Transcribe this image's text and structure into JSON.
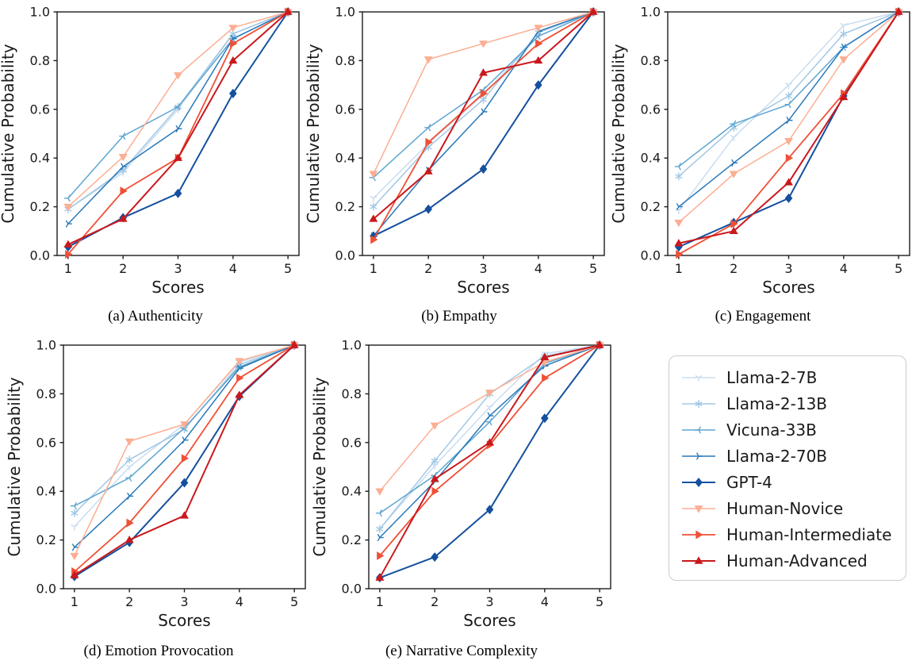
{
  "figure": {
    "background": "#ffffff",
    "spine_color": "#1c1c1c",
    "tick_color": "#1c1c1c"
  },
  "axes": {
    "xlabel": "Scores",
    "ylabel": "Cumulative Probability",
    "xticks": [
      "1",
      "2",
      "3",
      "4",
      "5"
    ],
    "yticks": [
      "0.0",
      "0.2",
      "0.4",
      "0.6",
      "0.8",
      "1.0"
    ],
    "xlim": [
      0.8,
      5.2
    ],
    "ylim": [
      0.0,
      1.0
    ],
    "grid": false
  },
  "legend": {
    "position": "right-middle",
    "items": [
      {
        "label": "Llama-2-7B",
        "color": "#c9ddf0",
        "marker": "tri-down-open",
        "line_width": 1.5
      },
      {
        "label": "Llama-2-13B",
        "color": "#a2c8e4",
        "marker": "asterisk",
        "line_width": 1.5
      },
      {
        "label": "Vicuna-33B",
        "color": "#5da5d1",
        "marker": "tri-left-open",
        "line_width": 1.5
      },
      {
        "label": "Llama-2-70B",
        "color": "#2979b9",
        "marker": "tri-right-open",
        "line_width": 1.5
      },
      {
        "label": "GPT-4",
        "color": "#15509e",
        "marker": "diamond-filled",
        "line_width": 2.0
      },
      {
        "label": "Human-Novice",
        "color": "#fcae92",
        "marker": "tri-down-filled",
        "line_width": 1.5
      },
      {
        "label": "Human-Intermediate",
        "color": "#ef5036",
        "marker": "tri-right-filled",
        "line_width": 1.8
      },
      {
        "label": "Human-Advanced",
        "color": "#ca181c",
        "marker": "tri-up-filled",
        "line_width": 2.0
      }
    ]
  },
  "chart_data": [
    {
      "type": "line",
      "id": "a",
      "caption": "(a) Authenticity",
      "xlabel": "Scores",
      "ylabel": "Cumulative Probability",
      "x": [
        1,
        2,
        3,
        4,
        5
      ],
      "series": [
        {
          "name": "Llama-2-7B",
          "values": [
            0.19,
            0.34,
            0.6,
            0.91,
            1.0
          ]
        },
        {
          "name": "Llama-2-13B",
          "values": [
            0.19,
            0.35,
            0.61,
            0.91,
            1.0
          ]
        },
        {
          "name": "Vicuna-33B",
          "values": [
            0.235,
            0.49,
            0.61,
            0.89,
            1.0
          ]
        },
        {
          "name": "Llama-2-70B",
          "values": [
            0.13,
            0.365,
            0.52,
            0.89,
            1.0
          ]
        },
        {
          "name": "GPT-4",
          "values": [
            0.035,
            0.155,
            0.255,
            0.665,
            1.0
          ]
        },
        {
          "name": "Human-Novice",
          "values": [
            0.2,
            0.405,
            0.74,
            0.935,
            1.0
          ]
        },
        {
          "name": "Human-Intermediate",
          "values": [
            0.005,
            0.265,
            0.4,
            0.87,
            1.0
          ]
        },
        {
          "name": "Human-Advanced",
          "values": [
            0.045,
            0.15,
            0.4,
            0.8,
            1.0
          ]
        }
      ]
    },
    {
      "type": "line",
      "id": "b",
      "caption": "(b) Empathy",
      "xlabel": "Scores",
      "ylabel": "Cumulative Probability",
      "x": [
        1,
        2,
        3,
        4,
        5
      ],
      "series": [
        {
          "name": "Llama-2-7B",
          "values": [
            0.235,
            0.46,
            0.66,
            0.9,
            1.0
          ]
        },
        {
          "name": "Llama-2-13B",
          "values": [
            0.2,
            0.445,
            0.64,
            0.915,
            1.0
          ]
        },
        {
          "name": "Vicuna-33B",
          "values": [
            0.32,
            0.525,
            0.68,
            0.9,
            1.0
          ]
        },
        {
          "name": "Llama-2-70B",
          "values": [
            0.08,
            0.35,
            0.59,
            0.92,
            1.0
          ]
        },
        {
          "name": "GPT-4",
          "values": [
            0.08,
            0.19,
            0.355,
            0.7,
            1.0
          ]
        },
        {
          "name": "Human-Novice",
          "values": [
            0.335,
            0.805,
            0.87,
            0.935,
            1.0
          ]
        },
        {
          "name": "Human-Intermediate",
          "values": [
            0.065,
            0.465,
            0.665,
            0.87,
            1.0
          ]
        },
        {
          "name": "Human-Advanced",
          "values": [
            0.15,
            0.345,
            0.75,
            0.8,
            1.0
          ]
        }
      ]
    },
    {
      "type": "line",
      "id": "c",
      "caption": "(c) Engagement",
      "xlabel": "Scores",
      "ylabel": "Cumulative Probability",
      "x": [
        1,
        2,
        3,
        4,
        5
      ],
      "series": [
        {
          "name": "Llama-2-7B",
          "values": [
            0.185,
            0.485,
            0.7,
            0.945,
            1.0
          ]
        },
        {
          "name": "Llama-2-13B",
          "values": [
            0.325,
            0.525,
            0.655,
            0.91,
            1.0
          ]
        },
        {
          "name": "Vicuna-33B",
          "values": [
            0.365,
            0.54,
            0.62,
            0.855,
            1.0
          ]
        },
        {
          "name": "Llama-2-70B",
          "values": [
            0.2,
            0.38,
            0.555,
            0.855,
            1.0
          ]
        },
        {
          "name": "GPT-4",
          "values": [
            0.035,
            0.135,
            0.235,
            0.655,
            1.0
          ]
        },
        {
          "name": "Human-Novice",
          "values": [
            0.135,
            0.335,
            0.47,
            0.805,
            1.0
          ]
        },
        {
          "name": "Human-Intermediate",
          "values": [
            0.005,
            0.13,
            0.4,
            0.665,
            1.0
          ]
        },
        {
          "name": "Human-Advanced",
          "values": [
            0.05,
            0.1,
            0.3,
            0.65,
            1.0
          ]
        }
      ]
    },
    {
      "type": "line",
      "id": "d",
      "caption": "(d) Emotion Provocation",
      "xlabel": "Scores",
      "ylabel": "Cumulative Probability",
      "x": [
        1,
        2,
        3,
        4,
        5
      ],
      "series": [
        {
          "name": "Llama-2-7B",
          "values": [
            0.255,
            0.5,
            0.675,
            0.93,
            1.0
          ]
        },
        {
          "name": "Llama-2-13B",
          "values": [
            0.31,
            0.53,
            0.655,
            0.92,
            1.0
          ]
        },
        {
          "name": "Vicuna-33B",
          "values": [
            0.34,
            0.455,
            0.66,
            0.91,
            1.0
          ]
        },
        {
          "name": "Llama-2-70B",
          "values": [
            0.17,
            0.38,
            0.61,
            0.905,
            1.0
          ]
        },
        {
          "name": "GPT-4",
          "values": [
            0.05,
            0.19,
            0.435,
            0.79,
            1.0
          ]
        },
        {
          "name": "Human-Novice",
          "values": [
            0.135,
            0.605,
            0.675,
            0.935,
            1.0
          ]
        },
        {
          "name": "Human-Intermediate",
          "values": [
            0.07,
            0.27,
            0.535,
            0.865,
            1.0
          ]
        },
        {
          "name": "Human-Advanced",
          "values": [
            0.055,
            0.2,
            0.3,
            0.795,
            1.0
          ]
        }
      ]
    },
    {
      "type": "line",
      "id": "e",
      "caption": "(e) Narrative Complexity",
      "xlabel": "Scores",
      "ylabel": "Cumulative Probability",
      "x": [
        1,
        2,
        3,
        4,
        5
      ],
      "series": [
        {
          "name": "Llama-2-7B",
          "values": [
            0.245,
            0.505,
            0.745,
            0.965,
            1.0
          ]
        },
        {
          "name": "Llama-2-13B",
          "values": [
            0.245,
            0.525,
            0.8,
            0.955,
            1.0
          ]
        },
        {
          "name": "Vicuna-33B",
          "values": [
            0.31,
            0.465,
            0.685,
            0.925,
            1.0
          ]
        },
        {
          "name": "Llama-2-70B",
          "values": [
            0.21,
            0.44,
            0.71,
            0.915,
            1.0
          ]
        },
        {
          "name": "GPT-4",
          "values": [
            0.045,
            0.13,
            0.325,
            0.7,
            1.0
          ]
        },
        {
          "name": "Human-Novice",
          "values": [
            0.4,
            0.67,
            0.805,
            0.93,
            1.0
          ]
        },
        {
          "name": "Human-Intermediate",
          "values": [
            0.135,
            0.4,
            0.59,
            0.865,
            1.0
          ]
        },
        {
          "name": "Human-Advanced",
          "values": [
            0.045,
            0.45,
            0.6,
            0.95,
            1.0
          ]
        }
      ]
    }
  ]
}
